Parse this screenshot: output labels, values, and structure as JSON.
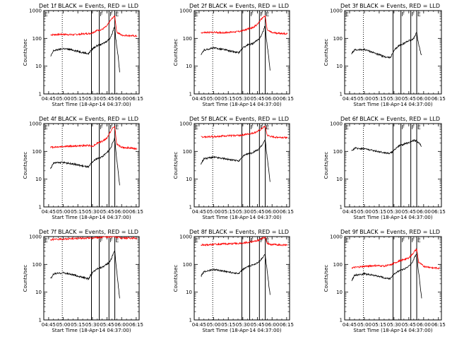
{
  "figure": {
    "common": {
      "xlabel": "Start Time (18-Apr-14 04:37:00)",
      "ylabel": "Counts/sec",
      "xticks": [
        "04:45",
        "05:00",
        "05:15",
        "05:30",
        "05:45",
        "06:00",
        "06:15"
      ],
      "yticks": [
        "1",
        "10",
        "100",
        "1000"
      ],
      "flag_labels": [
        "F",
        "F",
        "E"
      ],
      "black_color": "#000000",
      "red_color": "#ff0000"
    }
  },
  "chart_data": [
    {
      "type": "line",
      "title": "Det 1f BLACK = Events, RED = LLD",
      "xlabel": "Start Time (18-Apr-14 04:37:00)",
      "ylabel": "Counts/sec",
      "yscale": "log",
      "ylim": [
        1,
        1000
      ],
      "xlim": [
        "04:40",
        "06:18"
      ],
      "vertical_line": "04:59",
      "flag_lines": [
        "05:29",
        "05:37",
        "05:47",
        "05:53"
      ],
      "flag_labels": [
        "F",
        "F",
        "E"
      ],
      "series": [
        {
          "color": "#ff0000",
          "x": [
            "04:47",
            "05:00",
            "05:10",
            "05:20",
            "05:27",
            "05:30",
            "05:35",
            "05:40",
            "05:45",
            "05:48",
            "05:51",
            "05:53",
            "05:55",
            "06:00",
            "06:10",
            "06:16"
          ],
          "y": [
            135,
            140,
            135,
            145,
            150,
            160,
            195,
            210,
            280,
            420,
            560,
            630,
            170,
            130,
            125,
            120
          ]
        },
        {
          "color": "#000000",
          "x": [
            "04:47",
            "04:50",
            "05:00",
            "05:10",
            "05:20",
            "05:26",
            "05:28",
            "05:31",
            "05:35",
            "05:40",
            "05:45",
            "05:48",
            "05:50",
            "05:52",
            "05:53",
            "05:54",
            "05:55",
            "05:56",
            "05:57",
            "05:58"
          ],
          "y": [
            22,
            36,
            43,
            38,
            31,
            28,
            35,
            45,
            55,
            62,
            80,
            100,
            140,
            230,
            280,
            100,
            50,
            30,
            14,
            6
          ]
        }
      ]
    },
    {
      "type": "line",
      "title": "Det 2f BLACK = Events, RED = LLD",
      "xlabel": "Start Time (18-Apr-14 04:37:00)",
      "ylabel": "Counts/sec",
      "yscale": "log",
      "ylim": [
        1,
        1000
      ],
      "xlim": [
        "04:40",
        "06:18"
      ],
      "vertical_line": "04:59",
      "flag_lines": [
        "05:29",
        "05:37",
        "05:47",
        "05:53"
      ],
      "flag_labels": [
        "F",
        "F",
        "E"
      ],
      "series": [
        {
          "color": "#ff0000",
          "x": [
            "04:47",
            "05:00",
            "05:10",
            "05:20",
            "05:27",
            "05:30",
            "05:35",
            "05:40",
            "05:45",
            "05:48",
            "05:51",
            "05:53",
            "05:55",
            "06:00",
            "06:10",
            "06:16"
          ],
          "y": [
            160,
            165,
            160,
            170,
            180,
            190,
            220,
            240,
            320,
            450,
            580,
            650,
            200,
            160,
            150,
            145
          ]
        },
        {
          "color": "#000000",
          "x": [
            "04:47",
            "04:50",
            "05:00",
            "05:10",
            "05:20",
            "05:26",
            "05:28",
            "05:31",
            "05:35",
            "05:40",
            "05:45",
            "05:48",
            "05:50",
            "05:52",
            "05:53",
            "05:54",
            "05:55",
            "05:56",
            "05:57",
            "05:58"
          ],
          "y": [
            25,
            38,
            45,
            40,
            33,
            30,
            38,
            48,
            58,
            65,
            85,
            110,
            150,
            240,
            290,
            110,
            55,
            32,
            15,
            7
          ]
        }
      ]
    },
    {
      "type": "line",
      "title": "Det 3f BLACK = Events, RED = LLD",
      "xlabel": "Start Time (18-Apr-14 04:37:00)",
      "ylabel": "Counts/sec",
      "yscale": "log",
      "ylim": [
        1,
        1000
      ],
      "xlim": [
        "04:40",
        "06:18"
      ],
      "vertical_line": "04:59",
      "flag_lines": [
        "05:29",
        "05:37",
        "05:47",
        "05:53"
      ],
      "flag_labels": [
        "F",
        "F",
        "E"
      ],
      "series": [
        {
          "color": "#000000",
          "x": [
            "04:47",
            "04:50",
            "05:00",
            "05:10",
            "05:20",
            "05:26",
            "05:28",
            "05:31",
            "05:35",
            "05:40",
            "05:45",
            "05:48",
            "05:50",
            "05:52",
            "05:53",
            "05:54",
            "05:55",
            "05:56",
            "05:57",
            "05:58"
          ],
          "y": [
            28,
            38,
            40,
            30,
            22,
            20,
            26,
            40,
            55,
            65,
            85,
            88,
            100,
            140,
            160,
            90,
            60,
            45,
            30,
            25
          ]
        }
      ]
    },
    {
      "type": "line",
      "title": "Det 4f BLACK = Events, RED = LLD",
      "xlabel": "Start Time (18-Apr-14 04:37:00)",
      "ylabel": "Counts/sec",
      "yscale": "log",
      "ylim": [
        1,
        1000
      ],
      "xlim": [
        "04:40",
        "06:18"
      ],
      "vertical_line": "04:59",
      "flag_lines": [
        "05:29",
        "05:37",
        "05:47",
        "05:53"
      ],
      "flag_labels": [
        "F",
        "F",
        "E"
      ],
      "series": [
        {
          "color": "#ff0000",
          "x": [
            "04:47",
            "05:00",
            "05:10",
            "05:20",
            "05:27",
            "05:30",
            "05:35",
            "05:40",
            "05:45",
            "05:48",
            "05:51",
            "05:53",
            "05:55",
            "06:00",
            "06:10",
            "06:16"
          ],
          "y": [
            140,
            150,
            155,
            160,
            165,
            150,
            200,
            230,
            300,
            480,
            700,
            780,
            180,
            140,
            130,
            125
          ]
        },
        {
          "color": "#000000",
          "x": [
            "04:47",
            "04:50",
            "05:00",
            "05:10",
            "05:20",
            "05:26",
            "05:28",
            "05:31",
            "05:35",
            "05:40",
            "05:45",
            "05:48",
            "05:50",
            "05:52",
            "05:53",
            "05:54",
            "05:55",
            "05:56",
            "05:57",
            "05:58"
          ],
          "y": [
            24,
            38,
            40,
            35,
            30,
            27,
            34,
            45,
            55,
            65,
            90,
            120,
            170,
            260,
            300,
            110,
            50,
            28,
            12,
            6
          ]
        }
      ]
    },
    {
      "type": "line",
      "title": "Det 5f BLACK = Events, RED = LLD",
      "xlabel": "Start Time (18-Apr-14 04:37:00)",
      "ylabel": "Counts/sec",
      "yscale": "log",
      "ylim": [
        1,
        1000
      ],
      "xlim": [
        "04:40",
        "06:18"
      ],
      "vertical_line": "04:59",
      "flag_lines": [
        "05:29",
        "05:37",
        "05:47",
        "05:53"
      ],
      "flag_labels": [
        "F",
        "F",
        "E"
      ],
      "series": [
        {
          "color": "#ff0000",
          "x": [
            "04:47",
            "05:00",
            "05:10",
            "05:20",
            "05:27",
            "05:30",
            "05:35",
            "05:40",
            "05:45",
            "05:48",
            "05:51",
            "05:53",
            "05:55",
            "06:00",
            "06:10",
            "06:16"
          ],
          "y": [
            330,
            340,
            360,
            370,
            380,
            390,
            420,
            450,
            520,
            600,
            720,
            800,
            380,
            330,
            320,
            310
          ]
        },
        {
          "color": "#000000",
          "x": [
            "04:47",
            "04:50",
            "05:00",
            "05:10",
            "05:20",
            "05:26",
            "05:28",
            "05:31",
            "05:35",
            "05:40",
            "05:45",
            "05:48",
            "05:50",
            "05:52",
            "05:53",
            "05:54",
            "05:55",
            "05:56",
            "05:57",
            "05:58"
          ],
          "y": [
            35,
            55,
            62,
            55,
            48,
            45,
            55,
            70,
            80,
            90,
            110,
            140,
            170,
            230,
            260,
            120,
            60,
            32,
            15,
            8
          ]
        }
      ]
    },
    {
      "type": "line",
      "title": "Det 6f BLACK = Events, RED = LLD",
      "xlabel": "Start Time (18-Apr-14 04:37:00)",
      "ylabel": "Counts/sec",
      "yscale": "log",
      "ylim": [
        1,
        1000
      ],
      "xlim": [
        "04:40",
        "06:18"
      ],
      "vertical_line": "04:59",
      "flag_lines": [
        "05:29",
        "05:37",
        "05:47",
        "05:53"
      ],
      "flag_labels": [
        "F",
        "F",
        "E"
      ],
      "series": [
        {
          "color": "#000000",
          "x": [
            "04:47",
            "04:50",
            "05:00",
            "05:10",
            "05:20",
            "05:26",
            "05:28",
            "05:31",
            "05:35",
            "05:40",
            "05:45",
            "05:48",
            "05:50",
            "05:52",
            "05:53",
            "05:54",
            "05:55",
            "05:56",
            "05:57",
            "05:58"
          ],
          "y": [
            100,
            130,
            125,
            105,
            90,
            85,
            95,
            120,
            160,
            180,
            210,
            230,
            250,
            240,
            225,
            210,
            200,
            190,
            170,
            150
          ]
        }
      ]
    },
    {
      "type": "line",
      "title": "Det 7f BLACK = Events, RED = LLD",
      "xlabel": "Start Time (18-Apr-14 04:37:00)",
      "ylabel": "Counts/sec",
      "yscale": "log",
      "ylim": [
        1,
        1000
      ],
      "xlim": [
        "04:40",
        "06:18"
      ],
      "vertical_line": "04:59",
      "flag_lines": [
        "05:29",
        "05:37",
        "05:47",
        "05:53"
      ],
      "flag_labels": [
        "F",
        "F",
        "E"
      ],
      "series": [
        {
          "color": "#ff0000",
          "x": [
            "04:47",
            "05:00",
            "05:10",
            "05:20",
            "05:27",
            "05:30",
            "05:35",
            "05:40",
            "05:45",
            "05:48",
            "05:51",
            "05:53",
            "05:55",
            "06:00",
            "06:10",
            "06:16"
          ],
          "y": [
            780,
            820,
            850,
            870,
            880,
            900,
            920,
            950,
            980,
            1000,
            1000,
            1000,
            950,
            900,
            880,
            870
          ]
        },
        {
          "color": "#000000",
          "x": [
            "04:47",
            "04:50",
            "05:00",
            "05:10",
            "05:20",
            "05:26",
            "05:28",
            "05:31",
            "05:35",
            "05:40",
            "05:45",
            "05:48",
            "05:50",
            "05:52",
            "05:53",
            "05:54",
            "05:55",
            "05:56",
            "05:57",
            "05:58"
          ],
          "y": [
            30,
            45,
            50,
            42,
            34,
            30,
            40,
            55,
            70,
            80,
            100,
            130,
            180,
            280,
            320,
            120,
            55,
            28,
            12,
            6
          ]
        }
      ]
    },
    {
      "type": "line",
      "title": "Det 8f BLACK = Events, RED = LLD",
      "xlabel": "Start Time (18-Apr-14 04:37:00)",
      "ylabel": "Counts/sec",
      "yscale": "log",
      "ylim": [
        1,
        1000
      ],
      "xlim": [
        "04:40",
        "06:18"
      ],
      "vertical_line": "04:59",
      "flag_lines": [
        "05:29",
        "05:37",
        "05:47",
        "05:53"
      ],
      "flag_labels": [
        "F",
        "F",
        "E"
      ],
      "series": [
        {
          "color": "#ff0000",
          "x": [
            "04:47",
            "05:00",
            "05:10",
            "05:20",
            "05:27",
            "05:30",
            "05:35",
            "05:40",
            "05:45",
            "05:48",
            "05:51",
            "05:53",
            "05:55",
            "06:00",
            "06:10",
            "06:16"
          ],
          "y": [
            500,
            520,
            540,
            560,
            570,
            580,
            620,
            660,
            720,
            800,
            900,
            950,
            560,
            520,
            500,
            490
          ]
        },
        {
          "color": "#000000",
          "x": [
            "04:47",
            "04:50",
            "05:00",
            "05:10",
            "05:20",
            "05:26",
            "05:28",
            "05:31",
            "05:35",
            "05:40",
            "05:45",
            "05:48",
            "05:50",
            "05:52",
            "05:53",
            "05:54",
            "05:55",
            "05:56",
            "05:57",
            "05:58"
          ],
          "y": [
            38,
            55,
            65,
            58,
            50,
            46,
            55,
            70,
            82,
            95,
            115,
            140,
            165,
            210,
            230,
            110,
            55,
            30,
            14,
            8
          ]
        }
      ]
    },
    {
      "type": "line",
      "title": "Det 9f BLACK = Events, RED = LLD",
      "xlabel": "Start Time (18-Apr-14 04:37:00)",
      "ylabel": "Counts/sec",
      "yscale": "log",
      "ylim": [
        1,
        1000
      ],
      "xlim": [
        "04:40",
        "06:18"
      ],
      "vertical_line": "04:59",
      "flag_lines": [
        "05:29",
        "05:37",
        "05:47",
        "05:53"
      ],
      "flag_labels": [
        "F",
        "F",
        "E"
      ],
      "series": [
        {
          "color": "#ff0000",
          "x": [
            "04:47",
            "05:00",
            "05:10",
            "05:20",
            "05:27",
            "05:30",
            "05:35",
            "05:40",
            "05:45",
            "05:48",
            "05:51",
            "05:53",
            "05:55",
            "06:00",
            "06:10",
            "06:16"
          ],
          "y": [
            75,
            85,
            90,
            88,
            95,
            110,
            130,
            150,
            170,
            220,
            300,
            350,
            120,
            85,
            75,
            72
          ]
        },
        {
          "color": "#000000",
          "x": [
            "04:47",
            "04:50",
            "05:00",
            "05:10",
            "05:20",
            "05:26",
            "05:28",
            "05:31",
            "05:35",
            "05:40",
            "05:45",
            "05:48",
            "05:50",
            "05:52",
            "05:53",
            "05:54",
            "05:55",
            "05:56",
            "05:57",
            "05:58"
          ],
          "y": [
            26,
            40,
            46,
            40,
            33,
            30,
            37,
            48,
            58,
            68,
            85,
            110,
            150,
            220,
            250,
            100,
            48,
            26,
            12,
            6
          ]
        }
      ]
    }
  ]
}
